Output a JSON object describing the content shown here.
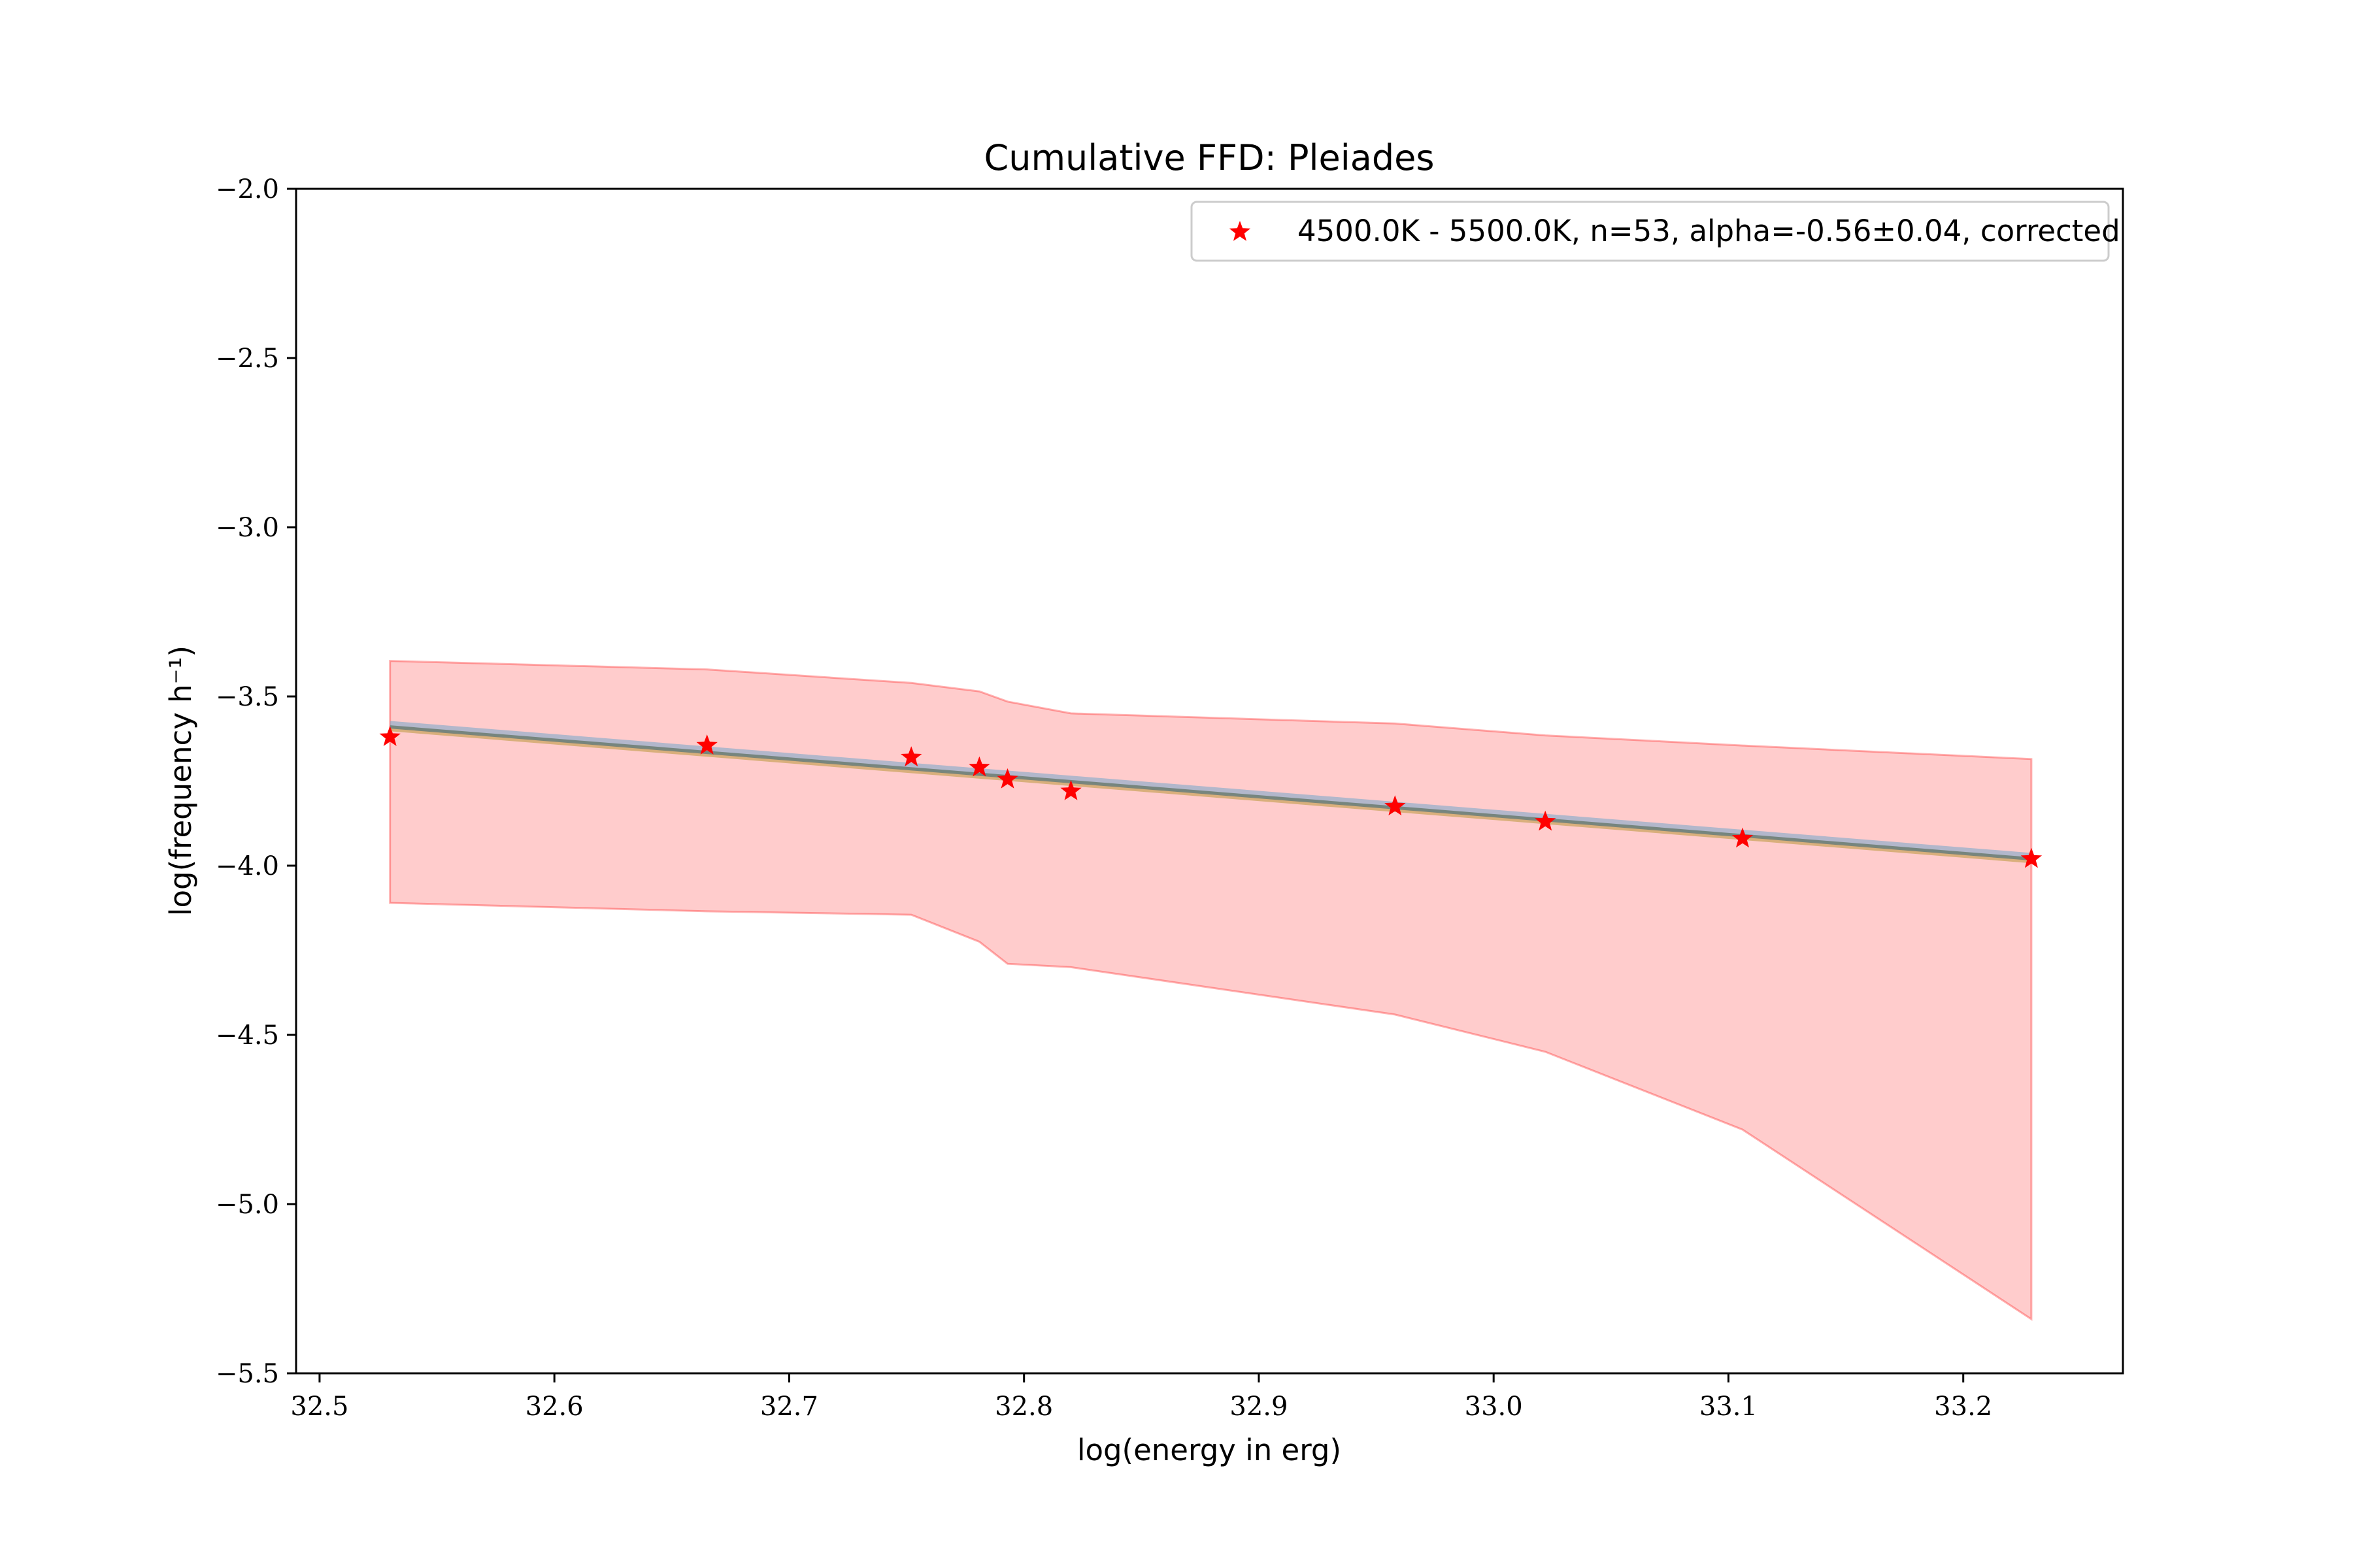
{
  "chart_data": {
    "type": "line",
    "title": "Cumulative FFD: Pleiades",
    "xlabel": "log(energy in erg)",
    "ylabel": "log(frequency h⁻¹)",
    "xlim": [
      32.49,
      33.268
    ],
    "ylim": [
      -5.5,
      -2.0
    ],
    "x_ticks": [
      32.5,
      32.6,
      32.7,
      32.8,
      32.9,
      33.0,
      33.1,
      33.2
    ],
    "x_tick_labels": [
      "32.5",
      "32.6",
      "32.7",
      "32.8",
      "32.9",
      "33.0",
      "33.1",
      "33.2"
    ],
    "y_ticks": [
      -2.0,
      -2.5,
      -3.0,
      -3.5,
      -4.0,
      -4.5,
      -5.0,
      -5.5
    ],
    "y_tick_labels": [
      "−2.0",
      "−2.5",
      "−3.0",
      "−3.5",
      "−4.0",
      "−4.5",
      "−5.0",
      "−5.5"
    ],
    "grid": false,
    "legend_position": "top-right",
    "series": [
      {
        "name": "4500.0K - 5500.0K, n=53, alpha=-0.56±0.04, corrected",
        "kind": "scatter",
        "marker": "star",
        "color": "#ff0000",
        "x": [
          32.53,
          32.665,
          32.752,
          32.781,
          32.793,
          32.82,
          32.958,
          33.022,
          33.106,
          33.229
        ],
        "y": [
          -3.62,
          -3.645,
          -3.68,
          -3.71,
          -3.745,
          -3.78,
          -3.825,
          -3.87,
          -3.92,
          -3.98
        ]
      }
    ],
    "uncertainty_band": {
      "color": "#ff0000",
      "opacity": 0.2,
      "x": [
        32.53,
        32.665,
        32.752,
        32.781,
        32.793,
        32.82,
        32.958,
        33.022,
        33.106,
        33.229
      ],
      "upper": [
        -3.395,
        -3.42,
        -3.46,
        -3.485,
        -3.515,
        -3.55,
        -3.58,
        -3.615,
        -3.645,
        -3.685
      ],
      "lower": [
        -4.11,
        -4.135,
        -4.145,
        -4.225,
        -4.29,
        -4.3,
        -4.44,
        -4.55,
        -4.78,
        -5.34
      ]
    },
    "fit_lines": [
      {
        "color": "#7fa8c9",
        "width": 10,
        "opacity": 0.6,
        "x": [
          32.53,
          33.229
        ],
        "y": [
          -3.582,
          -3.972
        ]
      },
      {
        "color": "#c9a25a",
        "width": 5,
        "opacity": 0.7,
        "x": [
          32.53,
          33.229
        ],
        "y": [
          -3.598,
          -3.988
        ]
      },
      {
        "color": "#6f7f76",
        "width": 5,
        "opacity": 0.9,
        "x": [
          32.53,
          33.229
        ],
        "y": [
          -3.59,
          -3.98
        ]
      }
    ]
  }
}
